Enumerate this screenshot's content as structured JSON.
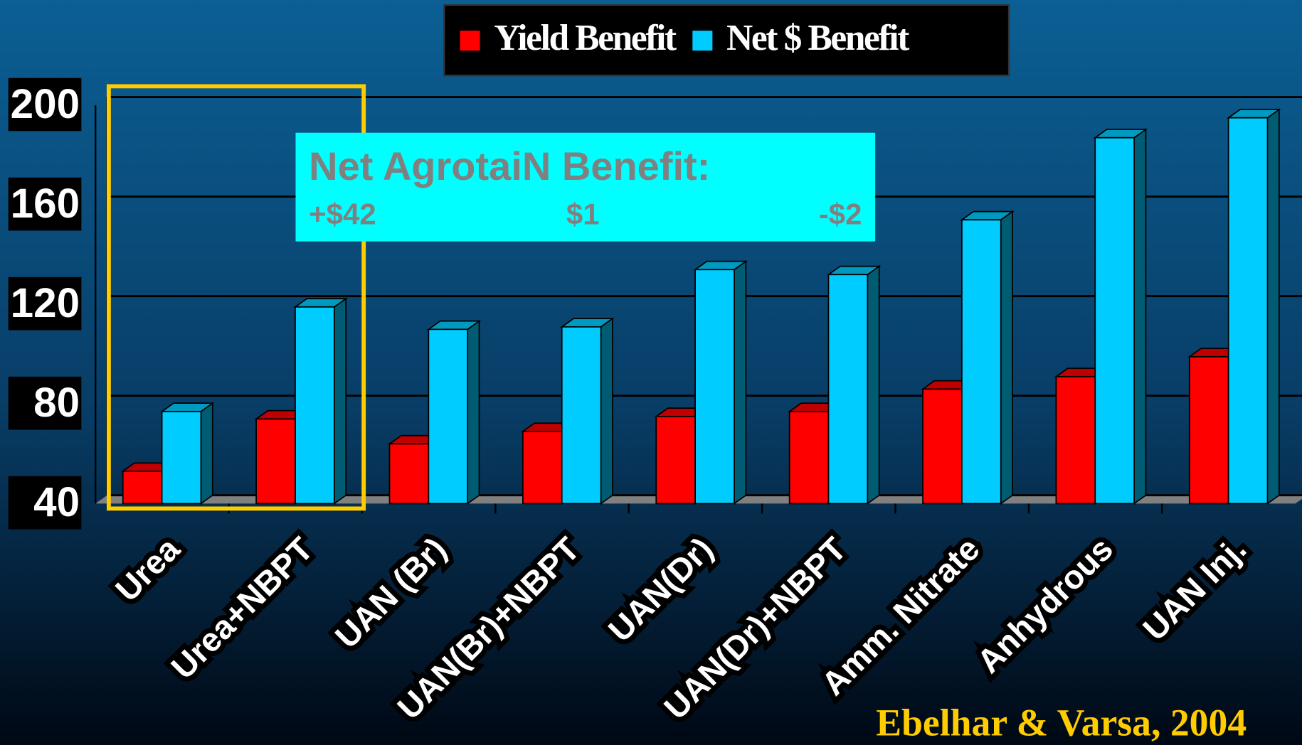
{
  "chart_data": {
    "type": "bar",
    "categories": [
      "Urea",
      "Urea+NBPT",
      "UAN (Br)",
      "UAN(Br)+NBPT",
      "UAN(Dr)",
      "UAN(Dr)+NBPT",
      "Amm. Nitrate",
      "Anhydrous",
      "UAN Inj."
    ],
    "series": [
      {
        "name": "Yield Benefit",
        "color": "#ff0000",
        "values": [
          53,
          74,
          64,
          69,
          75,
          77,
          86,
          91,
          99
        ]
      },
      {
        "name": "Net $ Benefit",
        "color": "#00ccff",
        "values": [
          77,
          119,
          110,
          111,
          134,
          132,
          154,
          187,
          195
        ]
      }
    ],
    "ylim": [
      40,
      200
    ],
    "yticks": [
      40,
      80,
      120,
      160,
      200
    ],
    "grid": true,
    "annotation": {
      "title": "Net AgrotaiN Benefit:",
      "values": [
        "+$42",
        "$1",
        "-$2"
      ]
    },
    "source": "Ebelhar & Varsa, 2004"
  }
}
